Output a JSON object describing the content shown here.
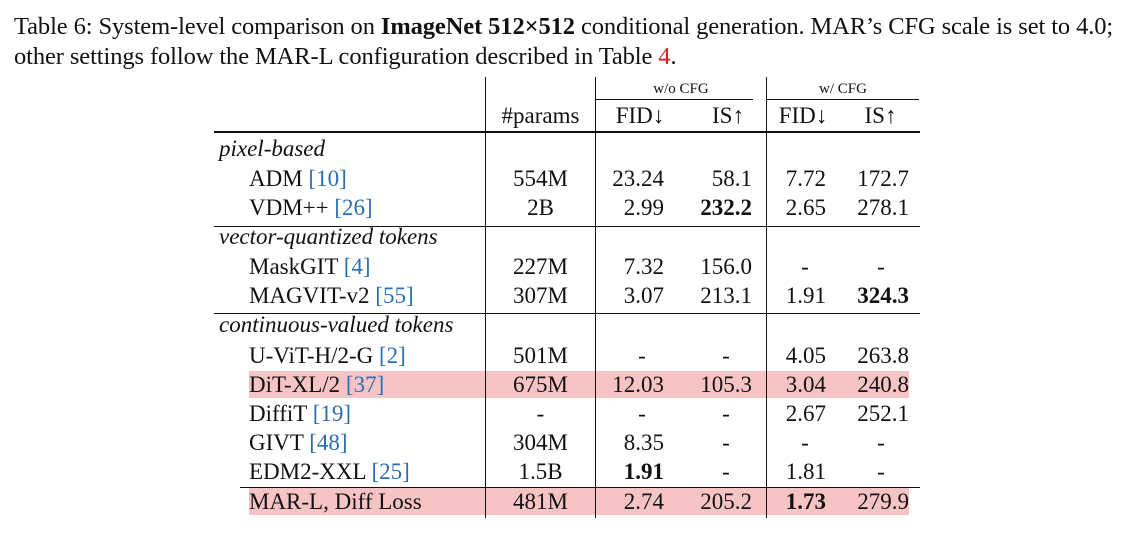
{
  "caption": {
    "label": "Table 6:",
    "text1": " System-level comparison on ",
    "bold": "ImageNet 512×512",
    "text2": " conditional generation.  MAR’s CFG scale is set to 4.0; other settings follow the MAR-L configuration described in Table ",
    "ref": "4",
    "end": "."
  },
  "header": {
    "group_wo": "w/o CFG",
    "group_w": "w/ CFG",
    "params": "#params",
    "fid": "FID↓",
    "is": "IS↑"
  },
  "sections": [
    {
      "title": "pixel-based",
      "rows": [
        {
          "name": "ADM",
          "ref": "[10]",
          "params": "554M",
          "fid_wo": "23.24",
          "is_wo": "58.1",
          "fid_w": "7.72",
          "is_w": "172.7"
        },
        {
          "name": "VDM++",
          "ref": "[26]",
          "params": "2B",
          "fid_wo": "2.99",
          "is_wo": "232.2",
          "fid_w": "2.65",
          "is_w": "278.1"
        }
      ]
    },
    {
      "title": "vector-quantized tokens",
      "rows": [
        {
          "name": "MaskGIT",
          "ref": "[4]",
          "params": "227M",
          "fid_wo": "7.32",
          "is_wo": "156.0",
          "fid_w": "-",
          "is_w": "-"
        },
        {
          "name": "MAGVIT-v2",
          "ref": "[55]",
          "params": "307M",
          "fid_wo": "3.07",
          "is_wo": "213.1",
          "fid_w": "1.91",
          "is_w": "324.3"
        }
      ]
    },
    {
      "title": "continuous-valued tokens",
      "rows": [
        {
          "name": "U-ViT-H/2-G",
          "ref": "[2]",
          "params": "501M",
          "fid_wo": "-",
          "is_wo": "-",
          "fid_w": "4.05",
          "is_w": "263.8"
        },
        {
          "name": "DiT-XL/2",
          "ref": "[37]",
          "params": "675M",
          "fid_wo": "12.03",
          "is_wo": "105.3",
          "fid_w": "3.04",
          "is_w": "240.8"
        },
        {
          "name": "DiffiT",
          "ref": "[19]",
          "params": "-",
          "fid_wo": "-",
          "is_wo": "-",
          "fid_w": "2.67",
          "is_w": "252.1"
        },
        {
          "name": "GIVT",
          "ref": "[48]",
          "params": "304M",
          "fid_wo": "8.35",
          "is_wo": "-",
          "fid_w": "-",
          "is_w": "-"
        },
        {
          "name": "EDM2-XXL",
          "ref": "[25]",
          "params": "1.5B",
          "fid_wo": "1.91",
          "is_wo": "-",
          "fid_w": "1.81",
          "is_w": "-"
        },
        {
          "name": "MAR-L, Diff Loss",
          "ref": "",
          "params": "481M",
          "fid_wo": "2.74",
          "is_wo": "205.2",
          "fid_w": "1.73",
          "is_w": "279.9"
        }
      ]
    }
  ]
}
